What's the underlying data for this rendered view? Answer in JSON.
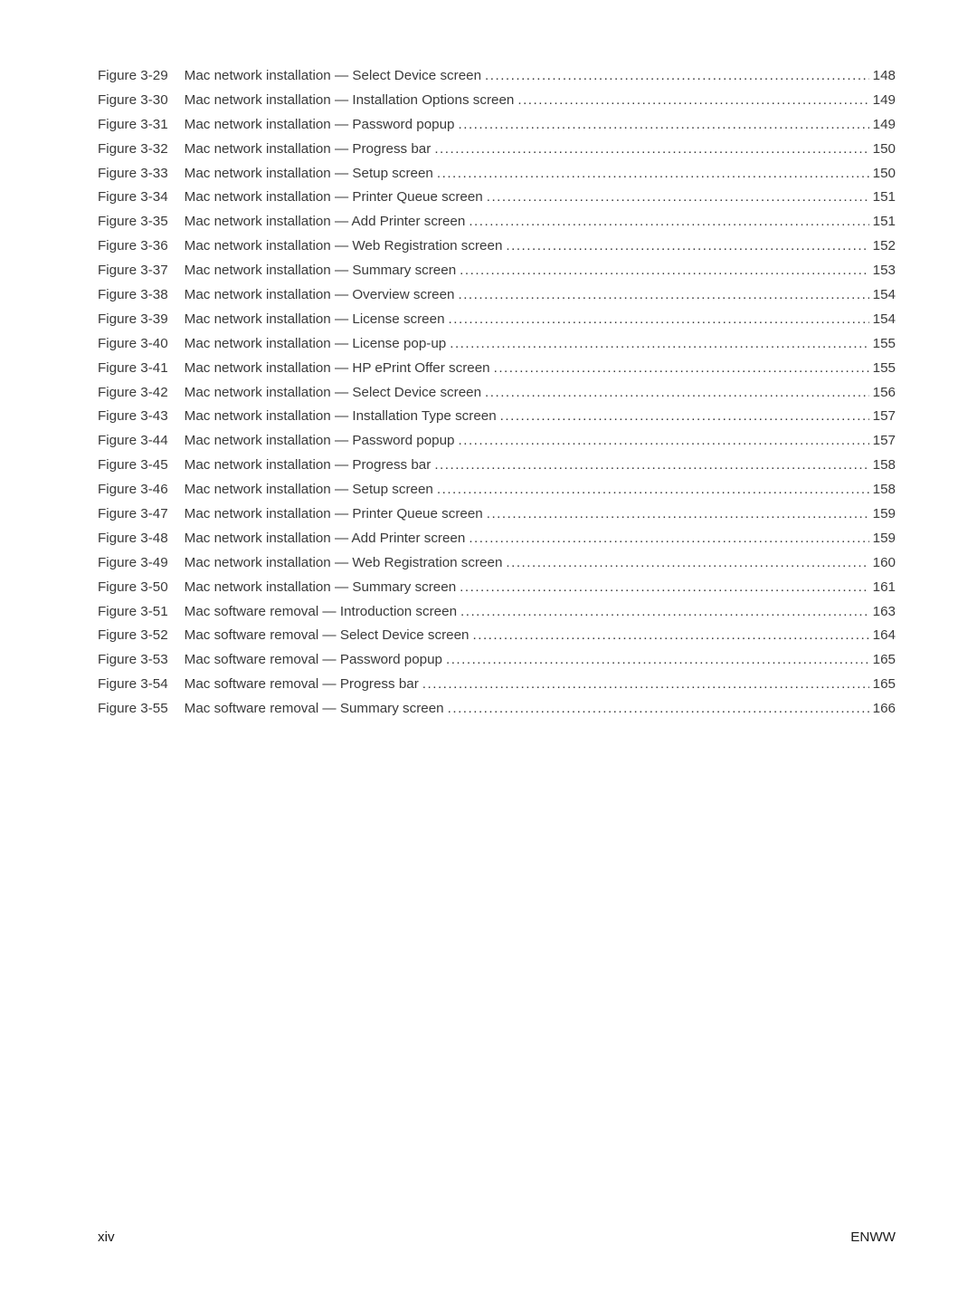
{
  "entries": [
    {
      "label": "Figure 3-29",
      "title": "Mac network installation — Select Device screen",
      "page": "148"
    },
    {
      "label": "Figure 3-30",
      "title": "Mac network installation — Installation Options screen",
      "page": "149"
    },
    {
      "label": "Figure 3-31",
      "title": "Mac network installation — Password popup",
      "page": "149"
    },
    {
      "label": "Figure 3-32",
      "title": "Mac network installation — Progress bar",
      "page": "150"
    },
    {
      "label": "Figure 3-33",
      "title": "Mac network installation — Setup screen",
      "page": "150"
    },
    {
      "label": "Figure 3-34",
      "title": "Mac network installation — Printer Queue screen",
      "page": "151"
    },
    {
      "label": "Figure 3-35",
      "title": "Mac network installation — Add Printer screen",
      "page": "151"
    },
    {
      "label": "Figure 3-36",
      "title": "Mac network installation — Web Registration screen",
      "page": "152"
    },
    {
      "label": "Figure 3-37",
      "title": "Mac network installation — Summary screen",
      "page": "153"
    },
    {
      "label": "Figure 3-38",
      "title": "Mac network installation — Overview screen",
      "page": "154"
    },
    {
      "label": "Figure 3-39",
      "title": "Mac network installation — License screen",
      "page": "154"
    },
    {
      "label": "Figure 3-40",
      "title": "Mac network installation — License pop-up",
      "page": "155"
    },
    {
      "label": "Figure 3-41",
      "title": "Mac network installation — HP ePrint Offer screen",
      "page": "155"
    },
    {
      "label": "Figure 3-42",
      "title": "Mac network installation — Select Device screen",
      "page": "156"
    },
    {
      "label": "Figure 3-43",
      "title": "Mac network installation — Installation Type screen",
      "page": "157"
    },
    {
      "label": "Figure 3-44",
      "title": "Mac network installation — Password popup",
      "page": "157"
    },
    {
      "label": "Figure 3-45",
      "title": "Mac network installation — Progress bar",
      "page": "158"
    },
    {
      "label": "Figure 3-46",
      "title": "Mac network installation — Setup screen",
      "page": "158"
    },
    {
      "label": "Figure 3-47",
      "title": "Mac network installation — Printer Queue screen",
      "page": "159"
    },
    {
      "label": "Figure 3-48",
      "title": "Mac network installation — Add Printer screen",
      "page": "159"
    },
    {
      "label": "Figure 3-49",
      "title": "Mac network installation — Web Registration screen",
      "page": "160"
    },
    {
      "label": "Figure 3-50",
      "title": "Mac network installation — Summary screen",
      "page": "161"
    },
    {
      "label": "Figure 3-51",
      "title": "Mac software removal — Introduction screen",
      "page": "163"
    },
    {
      "label": "Figure 3-52",
      "title": "Mac software removal — Select Device screen",
      "page": "164"
    },
    {
      "label": "Figure 3-53",
      "title": "Mac software removal — Password popup",
      "page": "165"
    },
    {
      "label": "Figure 3-54",
      "title": "Mac software removal — Progress bar",
      "page": "165"
    },
    {
      "label": "Figure 3-55",
      "title": "Mac software removal — Summary screen",
      "page": "166"
    }
  ],
  "footer": {
    "left": "xiv",
    "right": "ENWW"
  },
  "style": {
    "text_color": "#3a3a3a",
    "footer_color": "#1a1a1a",
    "background": "#ffffff",
    "fontsize_pt": 11.4
  }
}
